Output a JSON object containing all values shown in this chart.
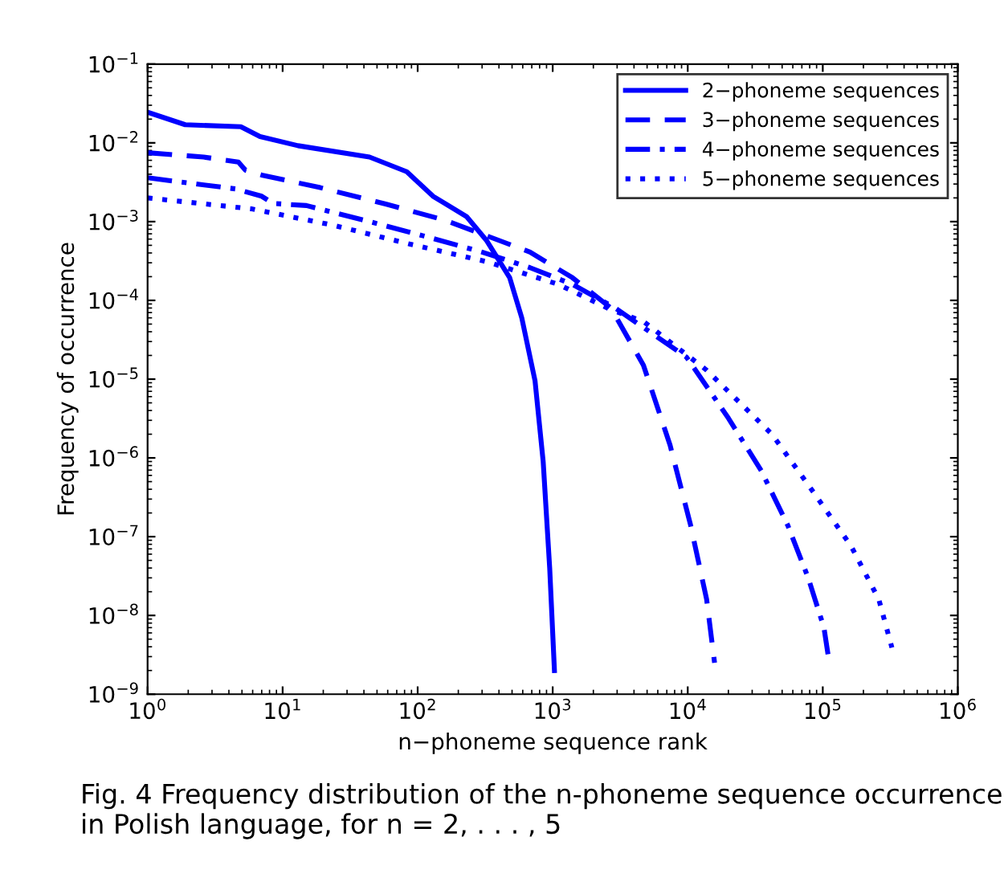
{
  "chart_data": {
    "type": "line",
    "xlabel": "n−phoneme sequence rank",
    "ylabel": "Frequency of occurrence",
    "log": "xy",
    "xlim": [
      1,
      1000000
    ],
    "ylim": [
      1e-09,
      0.1
    ],
    "xticks": [
      {
        "value": 1,
        "label": "10$^{0}$"
      },
      {
        "value": 10,
        "label": "10$^{1}$"
      },
      {
        "value": 100,
        "label": "10$^{2}$"
      },
      {
        "value": 1000,
        "label": "10$^{3}$"
      },
      {
        "value": 10000,
        "label": "10$^{4}$"
      },
      {
        "value": 100000,
        "label": "10$^{5}$"
      },
      {
        "value": 1000000,
        "label": "10$^{6}$"
      }
    ],
    "yticks": [
      {
        "value": 1e-09,
        "label": "10$^{−9}$"
      },
      {
        "value": 1e-08,
        "label": "10$^{−8}$"
      },
      {
        "value": 1e-07,
        "label": "10$^{−7}$"
      },
      {
        "value": 1e-06,
        "label": "10$^{−6}$"
      },
      {
        "value": 1e-05,
        "label": "10$^{−5}$"
      },
      {
        "value": 0.0001,
        "label": "10$^{−4}$"
      },
      {
        "value": 0.001,
        "label": "10$^{−3}$"
      },
      {
        "value": 0.01,
        "label": "10$^{−2}$"
      },
      {
        "value": 0.1,
        "label": "10$^{−1}$"
      }
    ],
    "grid": false,
    "legend": "top right",
    "marker": "none",
    "series": [
      {
        "name": "2−phoneme sequences",
        "color": "#0000ff",
        "line_style": "solid",
        "x": [
          1,
          1.9,
          4.9,
          6.8,
          13,
          44,
          83,
          130,
          230,
          325,
          480,
          590,
          740,
          850,
          950,
          1030
        ],
        "values": [
          0.0245,
          0.017,
          0.016,
          0.012,
          0.0092,
          0.0066,
          0.0043,
          0.0021,
          0.00116,
          0.00057,
          0.000194,
          6e-05,
          9.5e-06,
          9e-07,
          4e-08,
          2e-09
        ]
      },
      {
        "name": "3−phoneme sequences",
        "color": "#0000ff",
        "line_style": "dashed",
        "x": [
          1,
          2.6,
          4.7,
          5.3,
          7,
          19,
          58,
          160,
          325,
          680,
          1400,
          2700,
          4700,
          7400,
          10500,
          13800,
          15800
        ],
        "values": [
          0.0075,
          0.0066,
          0.0057,
          0.0045,
          0.0039,
          0.0027,
          0.00167,
          0.00104,
          0.00066,
          0.00041,
          0.000194,
          8e-05,
          1.5e-05,
          1.45e-06,
          1.4e-07,
          1.6e-08,
          2.5e-09
        ]
      },
      {
        "name": "4−phoneme sequences",
        "color": "#0000ff",
        "line_style": "dashdot",
        "x": [
          1,
          4.5,
          7,
          8.5,
          15,
          44,
          110,
          300,
          680,
          1400,
          2900,
          9800,
          20000,
          35000,
          55000,
          78000,
          102000,
          110000
        ],
        "values": [
          0.0036,
          0.0026,
          0.0021,
          0.0017,
          0.0016,
          0.001,
          0.00066,
          0.00041,
          0.00026,
          0.00016,
          8e-05,
          1.9e-05,
          3.2e-06,
          6.9e-07,
          1.4e-07,
          3e-08,
          7e-09,
          3e-09
        ]
      },
      {
        "name": "5−phoneme sequences",
        "color": "#0000ff",
        "line_style": "dotted",
        "x": [
          1,
          5.9,
          23,
          91,
          325,
          1100,
          2700,
          4700,
          13800,
          42000,
          87000,
          162000,
          260000,
          325000
        ],
        "values": [
          0.002,
          0.00145,
          0.00091,
          0.00051,
          0.00031,
          0.00016,
          7.6e-05,
          5.4e-05,
          1.3e-05,
          2e-06,
          3.5e-07,
          7.6e-08,
          1.6e-08,
          3.9e-09
        ]
      }
    ],
    "annotations": [
      "Fig. 4 Frequency distribution of the n-phoneme sequence occurrence in Polish language, for n = 2, . . . , 5"
    ]
  }
}
